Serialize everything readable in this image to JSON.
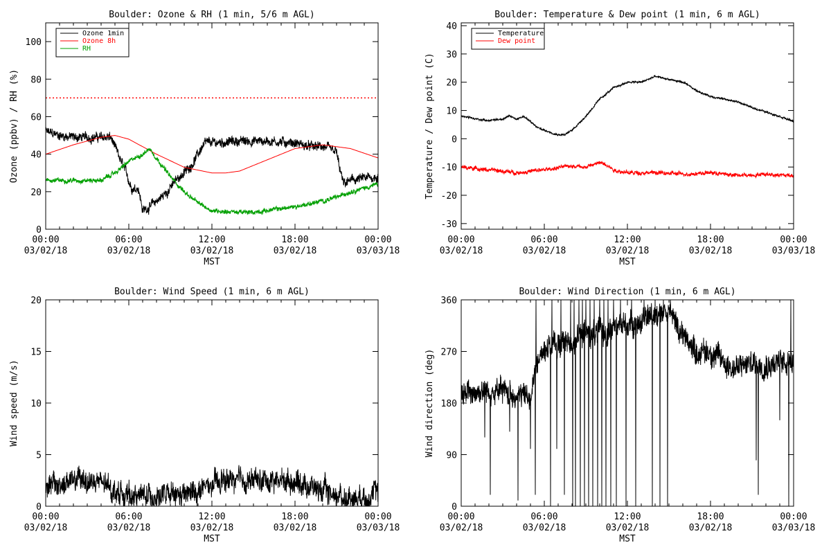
{
  "colors": {
    "black": "#000000",
    "red": "#ff0000",
    "green": "#00a000",
    "background": "#ffffff"
  },
  "x_tick_labels": [
    [
      "00:00",
      "03/02/18"
    ],
    [
      "06:00",
      "03/02/18"
    ],
    [
      "12:00",
      "03/02/18"
    ],
    [
      "18:00",
      "03/02/18"
    ],
    [
      "00:00",
      "03/03/18"
    ]
  ],
  "chart_data": [
    {
      "id": "ozone",
      "type": "line",
      "title": "Boulder: Ozone & RH (1 min, 5/6 m AGL)",
      "xlabel": "MST",
      "ylabel": "Ozone (ppbv) / RH (%)",
      "x_unit": "hours since 00:00 03/02/18",
      "xlim": [
        0,
        24
      ],
      "ylim": [
        0,
        110
      ],
      "yticks": [
        0,
        20,
        40,
        60,
        80,
        100
      ],
      "legend": "top-left",
      "reference_lines": [
        {
          "y": 70,
          "color": "#ff0000",
          "style": "dotted"
        }
      ],
      "series": [
        {
          "name": "Ozone 1min",
          "color": "#000000",
          "noise": 2.5,
          "x": [
            0,
            1,
            2,
            3,
            4,
            4.7,
            5.2,
            5.7,
            6.2,
            6.7,
            7,
            7.5,
            8,
            8.5,
            9,
            9.5,
            10,
            10.5,
            11,
            11.3,
            11.6,
            12,
            14,
            16,
            18,
            19,
            20,
            21,
            21.2,
            21.5,
            22,
            23,
            24
          ],
          "y": [
            52,
            50,
            49,
            49,
            49,
            49,
            40,
            32,
            22,
            22,
            10,
            12,
            15,
            18,
            22,
            27,
            30,
            34,
            40,
            44,
            46,
            46,
            47,
            47,
            46,
            44,
            44,
            41,
            33,
            24,
            26,
            27,
            28
          ]
        },
        {
          "name": "Ozone 8h",
          "color": "#ff0000",
          "noise": 0,
          "x": [
            0,
            2,
            4,
            5,
            6,
            8,
            10,
            12,
            13,
            14,
            16,
            18,
            20,
            22,
            24
          ],
          "y": [
            40,
            45,
            49,
            50,
            48,
            40,
            33,
            30,
            30,
            31,
            37,
            43,
            45,
            43,
            38
          ]
        },
        {
          "name": "RH",
          "color": "#00a000",
          "noise": 1.2,
          "x": [
            0,
            2,
            4,
            5,
            6,
            7,
            7.5,
            8,
            9,
            10,
            11,
            12,
            14,
            15,
            16,
            18,
            20,
            21,
            22,
            24
          ],
          "y": [
            26,
            26,
            26,
            30,
            36,
            40,
            43,
            38,
            28,
            20,
            14,
            10,
            9,
            9,
            10,
            12,
            15,
            17,
            20,
            24
          ]
        }
      ]
    },
    {
      "id": "temp",
      "type": "line",
      "title": "Boulder: Temperature & Dew point (1 min, 6 m AGL)",
      "xlabel": "MST",
      "ylabel": "Temperature / Dew point (C)",
      "x_unit": "hours since 00:00 03/02/18",
      "xlim": [
        0,
        24
      ],
      "ylim": [
        -32,
        41
      ],
      "yticks": [
        -30,
        -20,
        -10,
        0,
        10,
        20,
        30,
        40
      ],
      "legend": "top-left",
      "series": [
        {
          "name": "Temperature",
          "color": "#000000",
          "noise": 0.35,
          "x": [
            0,
            1,
            2,
            3,
            3.5,
            4,
            4.5,
            5,
            5.5,
            6,
            7,
            7.5,
            8,
            9,
            10,
            11,
            12,
            13,
            14,
            15,
            16,
            17,
            18,
            19,
            20,
            21,
            22,
            23,
            24
          ],
          "y": [
            8,
            7,
            6.5,
            7,
            8,
            7,
            8,
            6,
            4,
            3,
            1.5,
            1.5,
            3,
            8,
            14,
            18,
            20,
            20,
            22,
            21,
            20,
            17,
            15,
            14,
            13,
            11,
            9.5,
            8,
            6
          ]
        },
        {
          "name": "Dew point",
          "color": "#ff0000",
          "noise": 0.7,
          "x": [
            0,
            2,
            4,
            6,
            8,
            9,
            10,
            10.5,
            11,
            12,
            13,
            14,
            16,
            18,
            20,
            22,
            24
          ],
          "y": [
            -10,
            -11,
            -12,
            -11,
            -9.5,
            -10,
            -8.5,
            -9,
            -11,
            -12,
            -12,
            -12,
            -12.5,
            -12,
            -13,
            -12.5,
            -13
          ]
        }
      ]
    },
    {
      "id": "wspd",
      "type": "line",
      "title": "Boulder: Wind Speed (1 min, 6 m AGL)",
      "xlabel": "MST",
      "ylabel": "Wind speed (m/s)",
      "x_unit": "hours since 00:00 03/02/18",
      "xlim": [
        0,
        24
      ],
      "ylim": [
        0,
        20
      ],
      "yticks": [
        0,
        5,
        10,
        15,
        20
      ],
      "series": [
        {
          "name": "",
          "color": "#000000",
          "noise": 1.1,
          "min_clip": 0,
          "x": [
            0,
            1,
            2,
            3,
            4,
            5,
            6,
            8,
            10,
            11,
            12,
            13,
            14,
            16,
            18,
            20,
            21,
            22,
            23,
            24
          ],
          "y": [
            2,
            2,
            2.5,
            2.5,
            2.2,
            1.5,
            1,
            1,
            1,
            1.5,
            2,
            2.5,
            2.5,
            2.5,
            2.5,
            1.5,
            1,
            0.8,
            1,
            1.2
          ]
        }
      ]
    },
    {
      "id": "wdir",
      "type": "line",
      "title": "Boulder: Wind Direction (1 min, 6 m AGL)",
      "xlabel": "MST",
      "ylabel": "Wind direction (deg)",
      "x_unit": "hours since 00:00 03/02/18",
      "xlim": [
        0,
        24
      ],
      "ylim": [
        0,
        360
      ],
      "yticks": [
        0,
        90,
        180,
        270,
        360
      ],
      "series": [
        {
          "name": "",
          "color": "#000000",
          "noise": 22,
          "min_clip": 0,
          "max_clip": 360,
          "x": [
            0,
            1,
            2,
            3,
            4,
            5,
            5.5,
            6,
            7,
            8,
            9,
            10,
            11,
            12,
            13,
            14,
            14.5,
            15,
            16,
            17,
            18,
            19,
            20,
            21,
            22,
            23,
            24
          ],
          "y": [
            200,
            200,
            200,
            200,
            195,
            190,
            250,
            280,
            280,
            290,
            300,
            300,
            310,
            320,
            320,
            340,
            340,
            340,
            300,
            270,
            270,
            250,
            240,
            250,
            250,
            250,
            260
          ],
          "spikes": [
            [
              1.7,
              120
            ],
            [
              2.1,
              20
            ],
            [
              3.5,
              130
            ],
            [
              4.1,
              10
            ],
            [
              5.0,
              100
            ],
            [
              5.35,
              20
            ],
            [
              5.4,
              360
            ],
            [
              6.45,
              0
            ],
            [
              6.55,
              360
            ],
            [
              6.9,
              100
            ],
            [
              7.2,
              360
            ],
            [
              7.45,
              20
            ],
            [
              7.9,
              360
            ],
            [
              8.05,
              0
            ],
            [
              8.15,
              360
            ],
            [
              8.25,
              0
            ],
            [
              8.5,
              360
            ],
            [
              8.6,
              0
            ],
            [
              8.75,
              360
            ],
            [
              8.9,
              0
            ],
            [
              9.0,
              360
            ],
            [
              9.2,
              0
            ],
            [
              9.3,
              360
            ],
            [
              9.5,
              0
            ],
            [
              9.6,
              360
            ],
            [
              9.85,
              0
            ],
            [
              10.0,
              360
            ],
            [
              10.15,
              0
            ],
            [
              10.3,
              360
            ],
            [
              10.45,
              0
            ],
            [
              10.6,
              360
            ],
            [
              10.8,
              0
            ],
            [
              11.0,
              360
            ],
            [
              11.2,
              0
            ],
            [
              11.5,
              360
            ],
            [
              11.9,
              0
            ],
            [
              12.3,
              360
            ],
            [
              12.6,
              0
            ],
            [
              13.2,
              360
            ],
            [
              13.8,
              0
            ],
            [
              14.0,
              360
            ],
            [
              14.35,
              0
            ],
            [
              14.6,
              360
            ],
            [
              14.9,
              0
            ],
            [
              15.1,
              360
            ],
            [
              21.3,
              80
            ],
            [
              21.45,
              20
            ],
            [
              23.0,
              150
            ],
            [
              23.65,
              0
            ],
            [
              23.8,
              360
            ]
          ]
        }
      ]
    }
  ]
}
